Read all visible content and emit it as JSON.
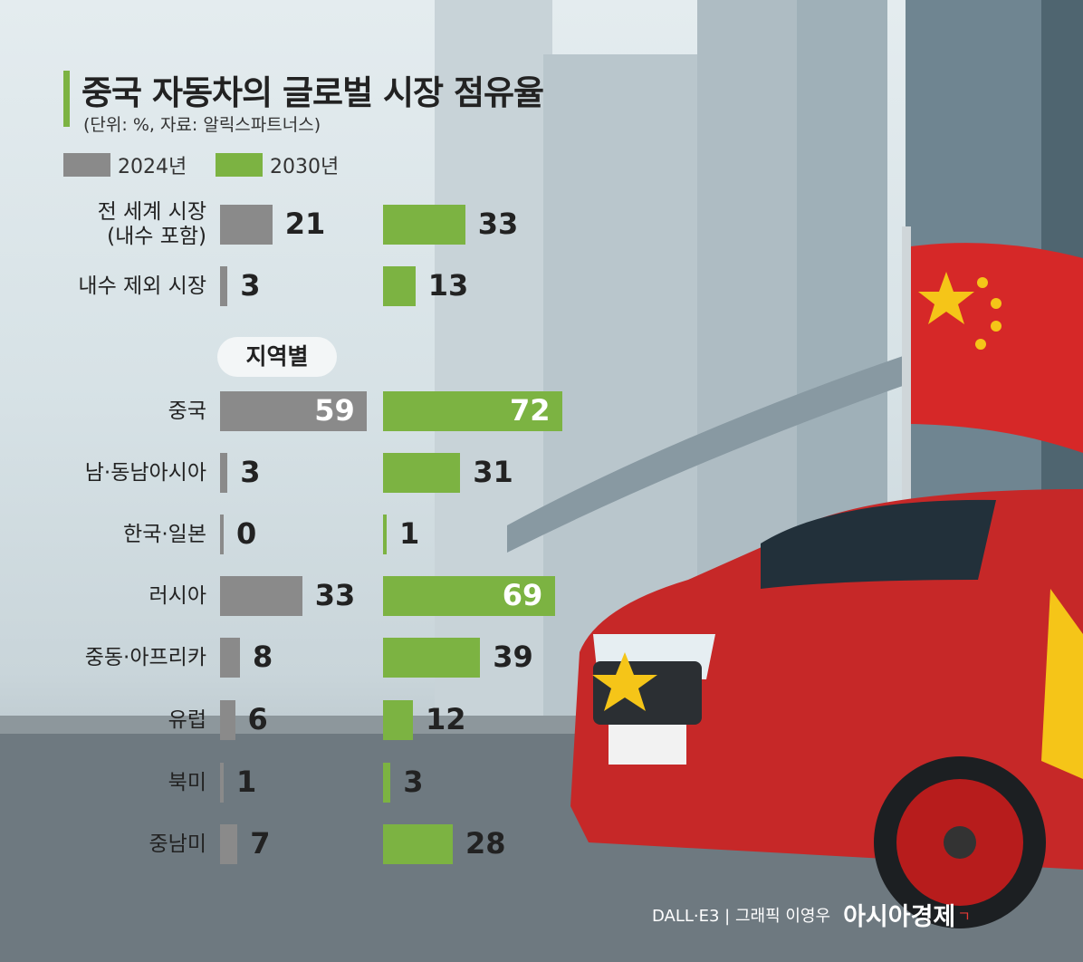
{
  "chart_data": {
    "type": "bar",
    "title": "중국 자동차의 글로벌 시장 점유율",
    "subtitle": "(단위: %, 자료: 알릭스파트너스)",
    "section_label": "지역별",
    "categories": [
      "전 세계 시장 (내수 포함)",
      "내수 제외 시장",
      "중국",
      "남·동남아시아",
      "한국·일본",
      "러시아",
      "중동·아프리카",
      "유럽",
      "북미",
      "중남미"
    ],
    "category_lines": [
      [
        "전 세계 시장",
        "(내수 포함)"
      ],
      [
        "내수 제외 시장"
      ],
      [
        "중국"
      ],
      [
        "남·동남아시아"
      ],
      [
        "한국·일본"
      ],
      [
        "러시아"
      ],
      [
        "중동·아프리카"
      ],
      [
        "유럽"
      ],
      [
        "북미"
      ],
      [
        "중남미"
      ]
    ],
    "series": [
      {
        "name": "2024년",
        "color": "#8a8a8a",
        "values": [
          21,
          3,
          59,
          3,
          0,
          33,
          8,
          6,
          1,
          7
        ]
      },
      {
        "name": "2030년",
        "color": "#7cb342",
        "values": [
          33,
          13,
          72,
          31,
          1,
          69,
          39,
          12,
          3,
          28
        ]
      }
    ],
    "legend_placement": "top-left",
    "grid": false
  },
  "credit": {
    "text": "DALL·E3 | 그래픽 이영우",
    "brand": "아시아경제",
    "brand_mark": "ㄱ"
  },
  "colors": {
    "accent_green": "#7cb342",
    "gray": "#8a8a8a",
    "flag_red": "#d62828",
    "flag_star": "#f5c518"
  }
}
